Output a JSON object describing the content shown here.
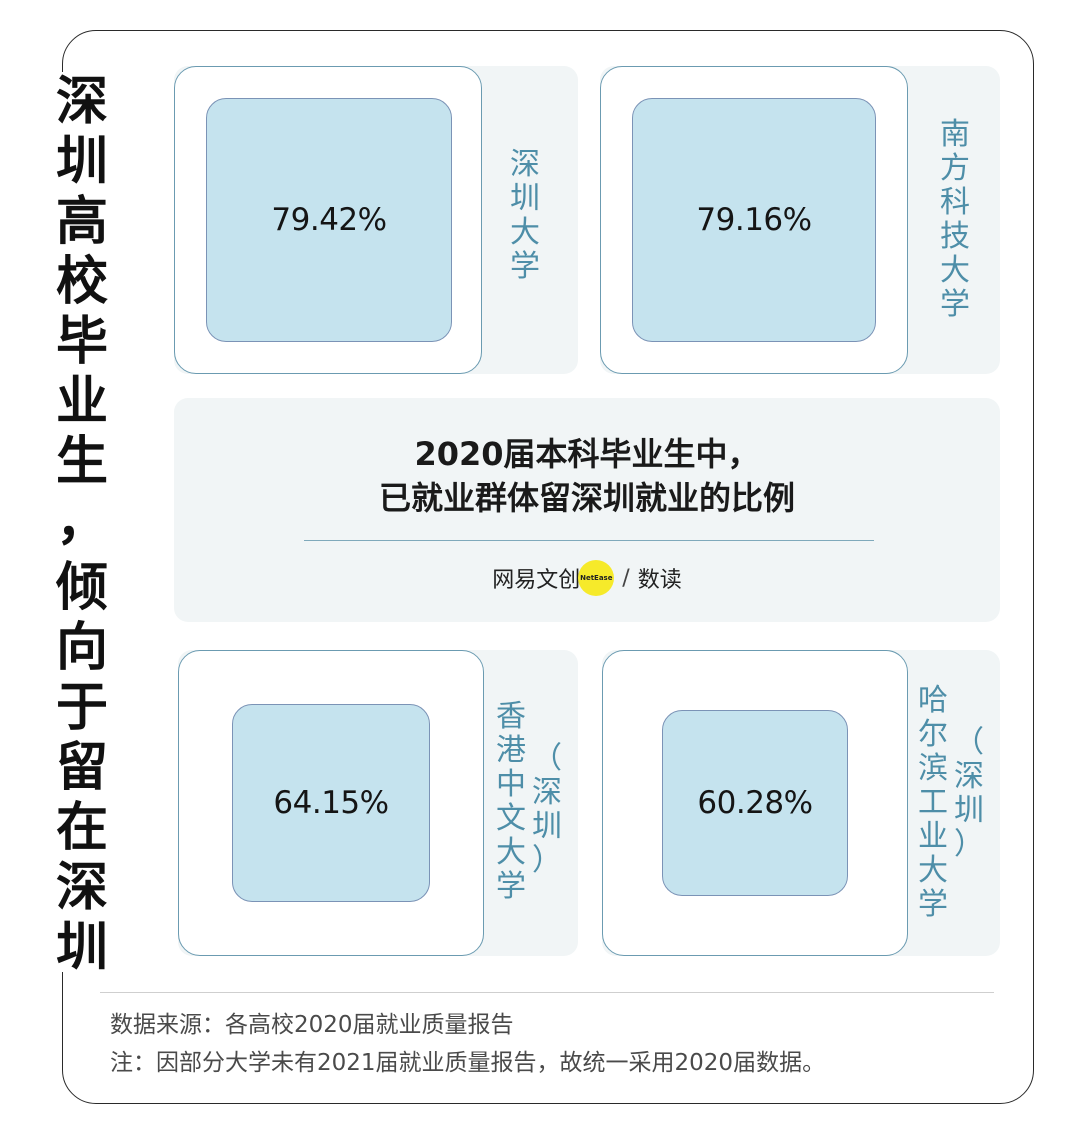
{
  "headline": {
    "line1": [
      "深",
      "圳",
      "高",
      "校",
      "毕",
      "业",
      "生",
      "，"
    ],
    "line2": [
      "倾",
      "向",
      "于",
      "留",
      "在",
      "深",
      "圳"
    ]
  },
  "chart_data": {
    "type": "table",
    "title": "2020届本科毕业生中，已就业群体留深圳就业的比例",
    "title_lines": [
      "2020届本科毕业生中，",
      "已就业群体留深圳就业的比例"
    ],
    "unit": "%",
    "items": [
      {
        "label": "深圳大学",
        "name_columns": [
          [
            "深",
            "圳",
            "大",
            "学"
          ]
        ],
        "value": 79.42,
        "value_label": "79.42%"
      },
      {
        "label": "南方科技大学",
        "name_columns": [
          [
            "南",
            "方",
            "科",
            "技",
            "大",
            "学"
          ]
        ],
        "value": 79.16,
        "value_label": "79.16%"
      },
      {
        "label": "香港中文大学（深圳）",
        "name_columns": [
          [
            "香",
            "港",
            "中",
            "文",
            "大",
            "学"
          ],
          [
            "（",
            "深",
            "圳",
            "）"
          ]
        ],
        "value": 64.15,
        "value_label": "64.15%"
      },
      {
        "label": "哈尔滨工业大学（深圳）",
        "name_columns": [
          [
            "哈",
            "尔",
            "滨",
            "工",
            "业",
            "大",
            "学"
          ],
          [
            "（",
            "深",
            "圳",
            "）"
          ]
        ],
        "value": 60.28,
        "value_label": "60.28%"
      }
    ]
  },
  "brand": {
    "name": "网易文创",
    "badge": "NetEase",
    "separator": "/",
    "sub": "数读"
  },
  "footer": {
    "source": "数据来源：各高校2020届就业质量报告",
    "note": "注：因部分大学未有2021届就业质量报告，故统一采用2020届数据。"
  },
  "colors": {
    "panel_bg": "#f1f5f6",
    "outer_border": "#6b9bb1",
    "inner_fill": "#c5e3ee",
    "inner_border": "#7b93b6",
    "label_color": "#4e8ea8",
    "badge_yellow": "#f6ea2a"
  }
}
